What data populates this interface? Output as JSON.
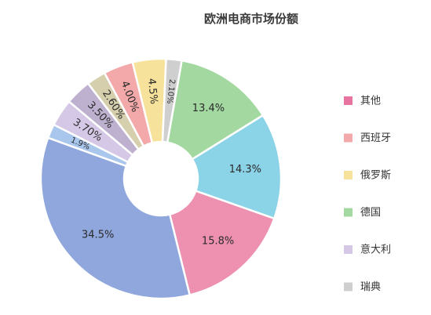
{
  "chart_data": {
    "type": "pie",
    "title": "欧洲电商市场份额",
    "donut": true,
    "slices": [
      {
        "label": "13.4%",
        "value": 13.4,
        "color": "#a3d9a0"
      },
      {
        "label": "14.3%",
        "value": 14.3,
        "color": "#8bd3e6"
      },
      {
        "label": "15.8%",
        "value": 15.8,
        "color": "#ee90b0"
      },
      {
        "label": "34.5%",
        "value": 34.5,
        "color": "#8fa7dc"
      },
      {
        "label": "1.9%",
        "value": 1.9,
        "color": "#a9c6ec"
      },
      {
        "label": "3.70%",
        "value": 3.7,
        "color": "#d5c8e6"
      },
      {
        "label": "3.50%",
        "value": 3.5,
        "color": "#bdb1cf"
      },
      {
        "label": "2.60%",
        "value": 2.6,
        "color": "#d6cfae"
      },
      {
        "label": "4.00%",
        "value": 4.0,
        "color": "#f3a9a9"
      },
      {
        "label": "4.5%",
        "value": 4.5,
        "color": "#f6e29a"
      },
      {
        "label": "2.10%",
        "value": 2.1,
        "color": "#cfcfcf"
      }
    ],
    "legend": {
      "placement": "right",
      "entries": [
        {
          "name": "其他",
          "color": "#e673a0"
        },
        {
          "name": "西班牙",
          "color": "#f3a9a9"
        },
        {
          "name": "俄罗斯",
          "color": "#f6e29a"
        },
        {
          "name": "德国",
          "color": "#a3d9a0"
        },
        {
          "name": "意大利",
          "color": "#d5c8e6"
        },
        {
          "name": "瑞典",
          "color": "#cfcfcf"
        }
      ]
    }
  }
}
